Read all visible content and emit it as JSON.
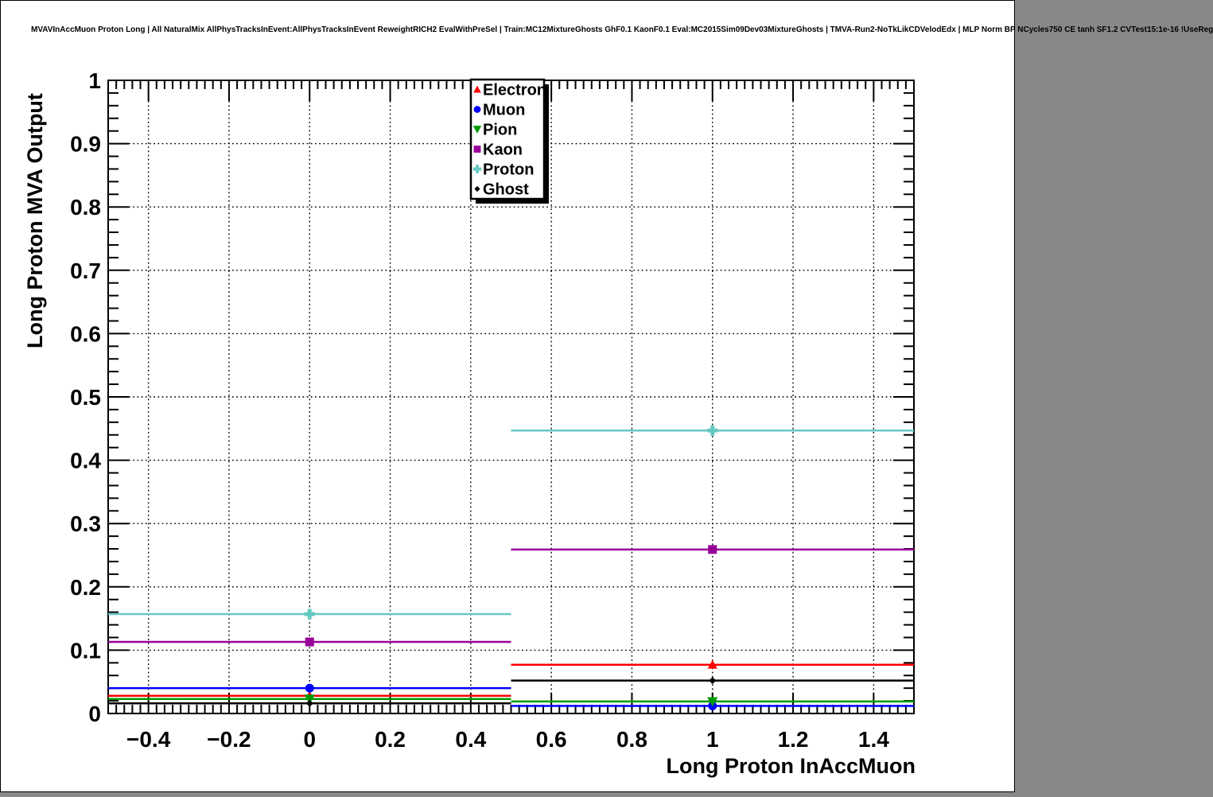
{
  "title": "MVAVInAccMuon Proton Long | All NaturalMix AllPhysTracksInEvent:AllPhysTracksInEvent ReweightRICH2 EvalWithPreSel | Train:MC12MixtureGhosts GhF0.1 KaonF0.1 Eval:MC2015Sim09Dev03MixtureGhosts | TMVA-Run2-NoTkLikCDVelodEdx | MLP Norm BP NCycles750 CE tanh SF1.2 CVTest15:1e-16 !UseReg",
  "chart_data": {
    "type": "line",
    "subtype": "binned-step-histogram-with-markers",
    "title": "",
    "xlabel": "Long Proton InAccMuon",
    "ylabel": "Long Proton MVA Output",
    "xlim": [
      -0.5,
      1.5
    ],
    "ylim": [
      0,
      1
    ],
    "grid": true,
    "grid_color": "#000000",
    "background": "#ffffff",
    "legend_position": "top-center",
    "x_ticks": {
      "values": [
        -0.4,
        -0.2,
        0,
        0.2,
        0.4,
        0.6,
        0.8,
        1,
        1.2,
        1.4
      ],
      "labels": [
        "−0.4",
        "−0.2",
        "0",
        "0.2",
        "0.4",
        "0.6",
        "0.8",
        "1",
        "1.2",
        "1.4"
      ]
    },
    "y_ticks": {
      "values": [
        0,
        0.1,
        0.2,
        0.3,
        0.4,
        0.5,
        0.6,
        0.7,
        0.8,
        0.9,
        1
      ],
      "labels": [
        "0",
        "0.1",
        "0.2",
        "0.3",
        "0.4",
        "0.5",
        "0.6",
        "0.7",
        "0.8",
        "0.9",
        "1"
      ]
    },
    "bins": [
      {
        "x_low": -0.5,
        "x_high": 0.5,
        "x_center": 0
      },
      {
        "x_low": 0.5,
        "x_high": 1.5,
        "x_center": 1
      }
    ],
    "series": [
      {
        "name": "Electron",
        "color": "#ff0000",
        "marker": "triangle-up",
        "values": [
          0.028,
          0.077
        ]
      },
      {
        "name": "Muon",
        "color": "#0000ff",
        "marker": "circle",
        "values": [
          0.04,
          0.012
        ]
      },
      {
        "name": "Pion",
        "color": "#009900",
        "marker": "triangle-down",
        "values": [
          0.023,
          0.019
        ]
      },
      {
        "name": "Kaon",
        "color": "#990099",
        "marker": "square",
        "values": [
          0.113,
          0.259
        ]
      },
      {
        "name": "Proton",
        "color": "#65c8c3",
        "marker": "cross",
        "values": [
          0.157,
          0.447
        ]
      },
      {
        "name": "Ghost",
        "color": "#000000",
        "marker": "diamond",
        "values": [
          0.016,
          0.052
        ]
      }
    ]
  }
}
